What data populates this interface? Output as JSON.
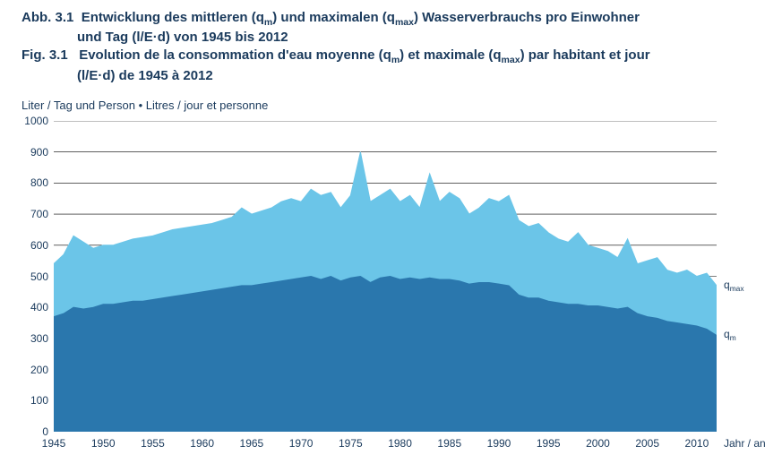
{
  "titles": {
    "de_prefix": "Abb. 3.1",
    "de_line1": "Entwicklung des mittleren (q",
    "de_sub1": "m",
    "de_line1b": ") und maximalen (q",
    "de_sub2": "max",
    "de_line1c": ") Wasserverbrauchs pro Einwohner",
    "de_line2": "und Tag (l/E·d) von 1945 bis 2012",
    "fr_prefix": "Fig. 3.1",
    "fr_line1": "Evolution de la consommation d'eau moyenne (q",
    "fr_sub1": "m",
    "fr_line1b": ") et maximale (q",
    "fr_sub2": "max",
    "fr_line1c": ") par habitant et jour",
    "fr_line2": "(l/E·d) de 1945 à 2012"
  },
  "chart": {
    "type": "area",
    "ylabel": "Liter / Tag und Person • Litres / jour et personne",
    "xlabel": "Jahr / an",
    "background_color": "#ffffff",
    "grid_color": "#000000",
    "grid_width": 0.6,
    "xlim": [
      1945,
      2012
    ],
    "ylim": [
      0,
      1000
    ],
    "ytick_step": 100,
    "xticks": [
      1945,
      1950,
      1955,
      1960,
      1965,
      1970,
      1975,
      1980,
      1985,
      1990,
      1995,
      2000,
      2005,
      2010
    ],
    "series": [
      {
        "name": "qmax",
        "label": "q",
        "label_sub": "max",
        "fill": "#6bc5e8",
        "stroke": "#6bc5e8",
        "label_at_year": 2012,
        "data": [
          [
            1945,
            540
          ],
          [
            1946,
            570
          ],
          [
            1947,
            630
          ],
          [
            1948,
            610
          ],
          [
            1949,
            590
          ],
          [
            1950,
            600
          ],
          [
            1951,
            600
          ],
          [
            1952,
            610
          ],
          [
            1953,
            620
          ],
          [
            1954,
            625
          ],
          [
            1955,
            630
          ],
          [
            1956,
            640
          ],
          [
            1957,
            650
          ],
          [
            1958,
            655
          ],
          [
            1959,
            660
          ],
          [
            1960,
            665
          ],
          [
            1961,
            670
          ],
          [
            1962,
            680
          ],
          [
            1963,
            690
          ],
          [
            1964,
            720
          ],
          [
            1965,
            700
          ],
          [
            1966,
            710
          ],
          [
            1967,
            720
          ],
          [
            1968,
            740
          ],
          [
            1969,
            750
          ],
          [
            1970,
            740
          ],
          [
            1971,
            780
          ],
          [
            1972,
            760
          ],
          [
            1973,
            770
          ],
          [
            1974,
            720
          ],
          [
            1975,
            760
          ],
          [
            1976,
            900
          ],
          [
            1977,
            740
          ],
          [
            1978,
            760
          ],
          [
            1979,
            780
          ],
          [
            1980,
            740
          ],
          [
            1981,
            760
          ],
          [
            1982,
            720
          ],
          [
            1983,
            830
          ],
          [
            1984,
            740
          ],
          [
            1985,
            770
          ],
          [
            1986,
            750
          ],
          [
            1987,
            700
          ],
          [
            1988,
            720
          ],
          [
            1989,
            750
          ],
          [
            1990,
            740
          ],
          [
            1991,
            760
          ],
          [
            1992,
            680
          ],
          [
            1993,
            660
          ],
          [
            1994,
            670
          ],
          [
            1995,
            640
          ],
          [
            1996,
            620
          ],
          [
            1997,
            610
          ],
          [
            1998,
            640
          ],
          [
            1999,
            600
          ],
          [
            2000,
            590
          ],
          [
            2001,
            580
          ],
          [
            2002,
            560
          ],
          [
            2003,
            620
          ],
          [
            2004,
            540
          ],
          [
            2005,
            550
          ],
          [
            2006,
            560
          ],
          [
            2007,
            520
          ],
          [
            2008,
            510
          ],
          [
            2009,
            520
          ],
          [
            2010,
            500
          ],
          [
            2011,
            510
          ],
          [
            2012,
            470
          ]
        ]
      },
      {
        "name": "qm",
        "label": "q",
        "label_sub": "m",
        "fill": "#2a77ad",
        "stroke": "#2a77ad",
        "label_at_year": 2012,
        "data": [
          [
            1945,
            370
          ],
          [
            1946,
            380
          ],
          [
            1947,
            400
          ],
          [
            1948,
            395
          ],
          [
            1949,
            400
          ],
          [
            1950,
            410
          ],
          [
            1951,
            410
          ],
          [
            1952,
            415
          ],
          [
            1953,
            420
          ],
          [
            1954,
            420
          ],
          [
            1955,
            425
          ],
          [
            1956,
            430
          ],
          [
            1957,
            435
          ],
          [
            1958,
            440
          ],
          [
            1959,
            445
          ],
          [
            1960,
            450
          ],
          [
            1961,
            455
          ],
          [
            1962,
            460
          ],
          [
            1963,
            465
          ],
          [
            1964,
            470
          ],
          [
            1965,
            470
          ],
          [
            1966,
            475
          ],
          [
            1967,
            480
          ],
          [
            1968,
            485
          ],
          [
            1969,
            490
          ],
          [
            1970,
            495
          ],
          [
            1971,
            500
          ],
          [
            1972,
            490
          ],
          [
            1973,
            500
          ],
          [
            1974,
            485
          ],
          [
            1975,
            495
          ],
          [
            1976,
            500
          ],
          [
            1977,
            480
          ],
          [
            1978,
            495
          ],
          [
            1979,
            500
          ],
          [
            1980,
            490
          ],
          [
            1981,
            495
          ],
          [
            1982,
            490
          ],
          [
            1983,
            495
          ],
          [
            1984,
            490
          ],
          [
            1985,
            490
          ],
          [
            1986,
            485
          ],
          [
            1987,
            475
          ],
          [
            1988,
            480
          ],
          [
            1989,
            480
          ],
          [
            1990,
            475
          ],
          [
            1991,
            470
          ],
          [
            1992,
            440
          ],
          [
            1993,
            430
          ],
          [
            1994,
            430
          ],
          [
            1995,
            420
          ],
          [
            1996,
            415
          ],
          [
            1997,
            410
          ],
          [
            1998,
            410
          ],
          [
            1999,
            405
          ],
          [
            2000,
            405
          ],
          [
            2001,
            400
          ],
          [
            2002,
            395
          ],
          [
            2003,
            400
          ],
          [
            2004,
            380
          ],
          [
            2005,
            370
          ],
          [
            2006,
            365
          ],
          [
            2007,
            355
          ],
          [
            2008,
            350
          ],
          [
            2009,
            345
          ],
          [
            2010,
            340
          ],
          [
            2011,
            330
          ],
          [
            2012,
            310
          ]
        ]
      }
    ]
  }
}
